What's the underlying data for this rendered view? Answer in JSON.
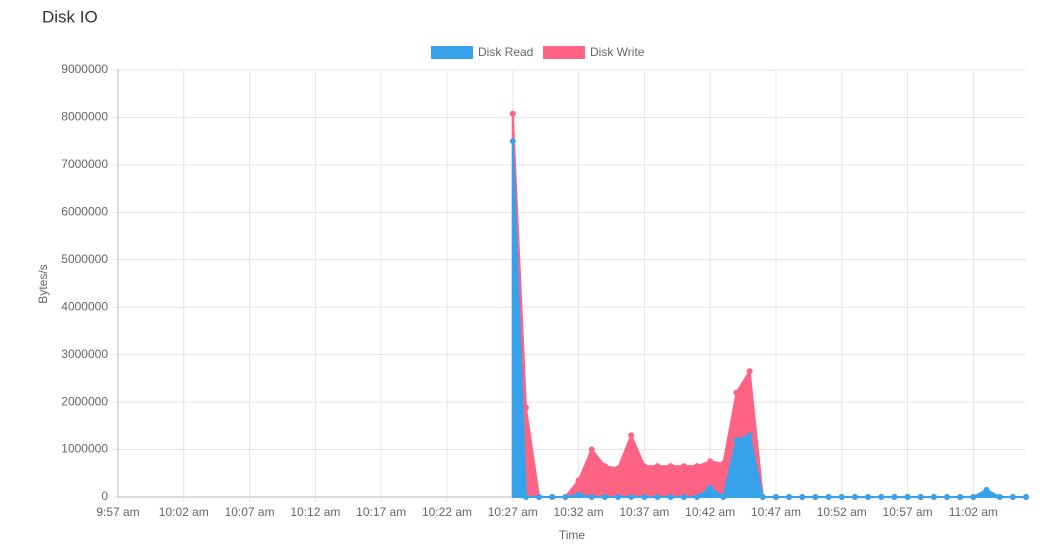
{
  "chart_data": {
    "type": "area",
    "title": "Disk IO",
    "x_label": "Time",
    "y_label": "Bytes/s",
    "categories": [
      "9:57 am",
      null,
      null,
      null,
      null,
      "10:02 am",
      null,
      null,
      null,
      null,
      "10:07 am",
      null,
      null,
      null,
      null,
      "10:12 am",
      null,
      null,
      null,
      null,
      "10:17 am",
      null,
      null,
      null,
      null,
      "10:22 am",
      null,
      null,
      null,
      null,
      "10:27 am",
      null,
      null,
      null,
      null,
      "10:32 am",
      null,
      null,
      null,
      null,
      "10:37 am",
      null,
      null,
      null,
      null,
      "10:42 am",
      null,
      null,
      null,
      null,
      "10:47 am",
      null,
      null,
      null,
      null,
      "10:52 am",
      null,
      null,
      null,
      null,
      "10:57 am",
      null,
      null,
      null,
      null,
      "11:02 am",
      null,
      null,
      null,
      null
    ],
    "series": [
      {
        "name": "Disk Read",
        "color": "#36a2eb",
        "values": [
          null,
          null,
          null,
          null,
          null,
          null,
          null,
          null,
          null,
          null,
          null,
          null,
          null,
          null,
          null,
          null,
          null,
          null,
          null,
          null,
          null,
          null,
          null,
          null,
          null,
          null,
          null,
          null,
          null,
          null,
          7500000,
          0,
          0,
          0,
          0,
          50000,
          0,
          0,
          0,
          0,
          0,
          0,
          0,
          0,
          0,
          200000,
          0,
          1200000,
          1300000,
          0,
          0,
          0,
          0,
          0,
          0,
          0,
          0,
          0,
          0,
          0,
          0,
          0,
          0,
          0,
          0,
          0,
          150000,
          0,
          0,
          0
        ]
      },
      {
        "name": "Disk Write",
        "color": "#ff6384",
        "values": [
          null,
          null,
          null,
          null,
          null,
          null,
          null,
          null,
          null,
          null,
          null,
          null,
          null,
          null,
          null,
          null,
          null,
          null,
          null,
          null,
          null,
          null,
          null,
          null,
          null,
          null,
          null,
          null,
          null,
          null,
          8080000,
          1880000,
          0,
          0,
          0,
          350000,
          1000000,
          650000,
          600000,
          1300000,
          650000,
          650000,
          650000,
          650000,
          650000,
          750000,
          700000,
          2200000,
          2650000,
          0,
          0,
          0,
          0,
          0,
          0,
          0,
          0,
          0,
          0,
          0,
          0,
          0,
          0,
          0,
          0,
          0,
          100000,
          0,
          0,
          0
        ]
      }
    ],
    "ylim": [
      0,
      9000000
    ],
    "yticks": [
      0,
      1000000,
      2000000,
      3000000,
      4000000,
      5000000,
      6000000,
      7000000,
      8000000,
      9000000
    ],
    "grid": true
  }
}
